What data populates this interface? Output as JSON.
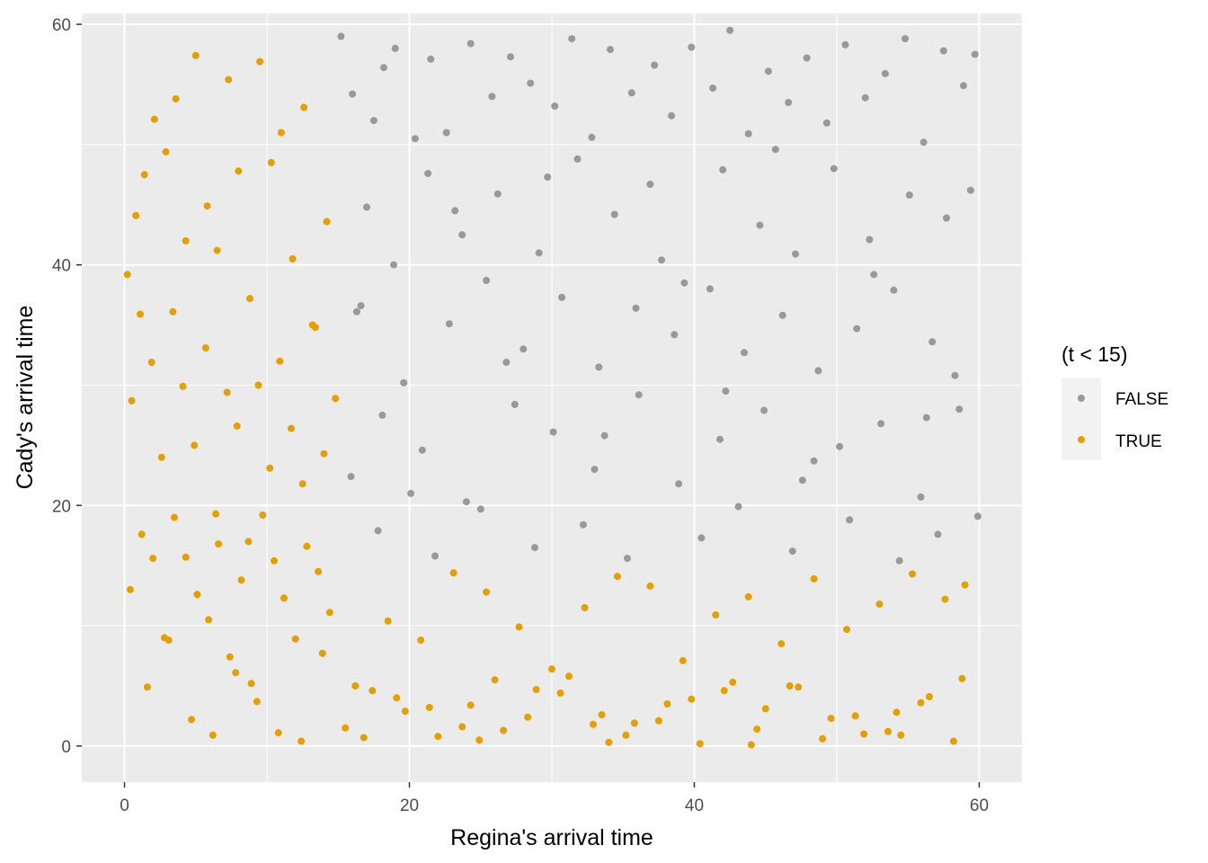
{
  "chart_data": {
    "type": "scatter",
    "title": "",
    "xlabel": "Regina's arrival time",
    "ylabel": "Cady's arrival time",
    "xlim": [
      -3,
      63
    ],
    "ylim": [
      -3,
      60.9
    ],
    "xticks": [
      0,
      20,
      40,
      60
    ],
    "yticks": [
      0,
      20,
      40,
      60
    ],
    "grid": true,
    "legend": {
      "title": "(t < 15)",
      "position": "right",
      "entries": [
        "FALSE",
        "TRUE"
      ]
    },
    "colors": {
      "FALSE": "#999999",
      "TRUE": "#e69f00",
      "panel": "#ebebeb",
      "grid": "#ffffff"
    },
    "series": [
      {
        "name": "FALSE",
        "x": [
          15.2,
          16.0,
          17.5,
          18.2,
          19.0,
          20.4,
          21.5,
          22.6,
          24.3,
          25.8,
          27.1,
          28.5,
          30.2,
          31.4,
          32.8,
          34.1,
          35.6,
          37.2,
          38.4,
          39.8,
          41.3,
          42.5,
          43.8,
          45.2,
          46.6,
          47.9,
          49.3,
          50.6,
          52.0,
          53.4,
          54.8,
          56.1,
          57.5,
          58.9,
          59.7,
          17.0,
          18.9,
          21.3,
          23.7,
          26.2,
          29.1,
          31.8,
          34.4,
          36.9,
          39.3,
          42.0,
          44.6,
          47.1,
          49.8,
          52.3,
          55.1,
          57.7,
          59.4,
          16.6,
          19.6,
          22.8,
          25.4,
          28.0,
          30.7,
          33.3,
          35.9,
          38.6,
          41.1,
          43.5,
          46.2,
          48.7,
          51.4,
          54.0,
          56.7,
          58.3,
          15.9,
          18.1,
          20.9,
          24.0,
          27.4,
          30.1,
          33.0,
          36.1,
          38.9,
          41.8,
          44.9,
          47.6,
          50.2,
          53.1,
          55.9,
          58.6,
          17.8,
          21.8,
          25.0,
          28.8,
          32.2,
          35.3,
          40.5,
          43.1,
          46.9,
          50.9,
          54.4,
          57.1,
          59.9,
          16.3,
          20.1,
          23.2,
          26.8,
          29.7,
          33.7,
          37.7,
          42.2,
          45.7,
          48.4,
          52.6,
          56.3
        ],
        "y": [
          59.0,
          54.2,
          52.0,
          56.4,
          58.0,
          50.5,
          57.1,
          51.0,
          58.4,
          54.0,
          57.3,
          55.1,
          53.2,
          58.8,
          50.6,
          57.9,
          54.3,
          56.6,
          52.4,
          58.1,
          54.7,
          59.5,
          50.9,
          56.1,
          53.5,
          57.2,
          51.8,
          58.3,
          53.9,
          55.9,
          58.8,
          50.2,
          57.8,
          54.9,
          57.5,
          44.8,
          40.0,
          47.6,
          42.5,
          45.9,
          41.0,
          48.8,
          44.2,
          46.7,
          38.5,
          47.9,
          43.3,
          40.9,
          48.0,
          42.1,
          45.8,
          43.9,
          46.2,
          36.6,
          30.2,
          35.1,
          38.7,
          33.0,
          37.3,
          31.5,
          36.4,
          34.2,
          38.0,
          32.7,
          35.8,
          31.2,
          34.7,
          37.9,
          33.6,
          30.8,
          22.4,
          27.5,
          24.6,
          20.3,
          28.4,
          26.1,
          23.0,
          29.2,
          21.8,
          25.5,
          27.9,
          22.1,
          24.9,
          26.8,
          20.7,
          28.0,
          17.9,
          15.8,
          19.7,
          16.5,
          18.4,
          15.6,
          17.3,
          19.9,
          16.2,
          18.8,
          15.4,
          17.6,
          19.1,
          36.1,
          21.0,
          44.5,
          31.9,
          47.3,
          25.8,
          40.4,
          29.5,
          49.6,
          23.7,
          39.2,
          27.3
        ],
        "values_note": ""
      },
      {
        "name": "TRUE",
        "x": [
          0.2,
          0.8,
          1.4,
          2.1,
          2.9,
          3.6,
          4.3,
          5.0,
          5.8,
          6.5,
          7.3,
          8.0,
          8.8,
          9.5,
          10.3,
          11.0,
          11.8,
          12.6,
          13.4,
          14.2,
          0.5,
          1.1,
          1.9,
          2.6,
          3.4,
          4.1,
          4.9,
          5.7,
          6.4,
          7.2,
          7.9,
          8.7,
          9.4,
          10.2,
          10.9,
          11.7,
          12.5,
          13.2,
          14.0,
          14.8,
          0.4,
          1.2,
          2.0,
          2.8,
          3.5,
          4.3,
          5.1,
          5.9,
          6.6,
          7.4,
          8.2,
          8.9,
          9.7,
          10.5,
          11.2,
          12.0,
          12.8,
          13.6,
          14.4,
          1.6,
          3.1,
          4.7,
          6.2,
          7.8,
          9.3,
          10.8,
          12.4,
          13.9,
          16.2,
          18.5,
          20.8,
          23.1,
          25.4,
          27.7,
          30.0,
          32.3,
          34.6,
          36.9,
          39.2,
          41.5,
          43.8,
          46.1,
          48.4,
          50.7,
          53.0,
          55.3,
          57.6,
          59.0,
          17.4,
          19.7,
          22.0,
          24.3,
          26.6,
          28.9,
          31.2,
          33.5,
          35.8,
          38.1,
          40.4,
          42.7,
          45.0,
          47.3,
          49.6,
          51.9,
          54.2,
          56.5,
          58.8,
          16.8,
          19.1,
          21.4,
          23.7,
          26.0,
          28.3,
          30.6,
          32.9,
          35.2,
          37.5,
          39.8,
          42.1,
          44.4,
          46.7,
          49.0,
          51.3,
          53.6,
          55.9,
          58.2,
          15.5,
          24.9,
          34.0,
          44.0,
          54.5
        ],
        "y": [
          39.2,
          44.1,
          47.5,
          52.1,
          49.4,
          53.8,
          42.0,
          57.4,
          44.9,
          41.2,
          55.4,
          47.8,
          37.2,
          56.9,
          48.5,
          51.0,
          40.5,
          53.1,
          34.8,
          43.6,
          28.7,
          35.9,
          31.9,
          24.0,
          36.1,
          29.9,
          25.0,
          33.1,
          19.3,
          29.4,
          26.6,
          17.0,
          30.0,
          23.1,
          32.0,
          26.4,
          21.8,
          35.0,
          24.3,
          28.9,
          13.0,
          17.6,
          15.6,
          9.0,
          19.0,
          15.7,
          12.6,
          10.5,
          16.8,
          7.4,
          13.8,
          5.2,
          19.2,
          15.4,
          12.3,
          8.9,
          16.6,
          14.5,
          11.1,
          4.9,
          8.8,
          2.2,
          0.9,
          6.1,
          3.7,
          1.1,
          0.4,
          7.7,
          5.0,
          10.4,
          8.8,
          14.4,
          12.8,
          9.9,
          6.4,
          11.5,
          14.1,
          13.3,
          7.1,
          10.9,
          12.4,
          8.5,
          13.9,
          9.7,
          11.8,
          14.3,
          12.2,
          13.4,
          4.6,
          2.9,
          0.8,
          3.4,
          1.3,
          4.7,
          5.8,
          2.6,
          1.9,
          3.5,
          0.2,
          5.3,
          3.1,
          4.9,
          2.3,
          1.0,
          2.8,
          4.1,
          5.6,
          0.7,
          4.0,
          3.2,
          1.6,
          5.5,
          2.4,
          4.4,
          1.8,
          0.9,
          2.1,
          3.9,
          4.6,
          1.4,
          5.0,
          0.6,
          2.5,
          1.2,
          3.6,
          0.4,
          1.5,
          0.5,
          0.3,
          0.1,
          0.9
        ]
      }
    ]
  }
}
